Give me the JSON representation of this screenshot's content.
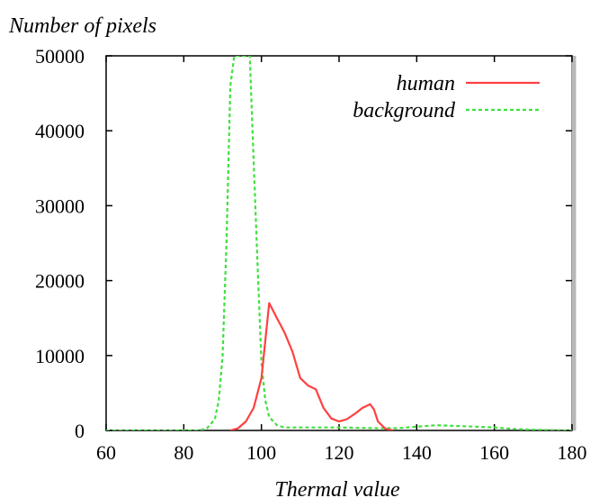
{
  "chart_data": {
    "type": "line",
    "title": "",
    "xlabel": "Thermal value",
    "ylabel": "Number of pixels",
    "xlim": [
      60,
      180
    ],
    "ylim": [
      0,
      50000
    ],
    "xticks": [
      60,
      80,
      100,
      120,
      140,
      160,
      180
    ],
    "yticks": [
      0,
      10000,
      20000,
      30000,
      40000,
      50000
    ],
    "xtick_labels": [
      "60",
      "80",
      "100",
      "120",
      "140",
      "160",
      "180"
    ],
    "ytick_labels": [
      "0",
      "10000",
      "20000",
      "30000",
      "40000",
      "50000"
    ],
    "legend_position": "top-right",
    "grid": false,
    "series": [
      {
        "name": "human",
        "color": "#ff4040",
        "style": "solid",
        "x": [
          92,
          94,
          96,
          98,
          100,
          101,
          102,
          103,
          104,
          105,
          106,
          108,
          110,
          112,
          114,
          116,
          118,
          120,
          122,
          124,
          126,
          128,
          129,
          130,
          132,
          134
        ],
        "y": [
          0,
          300,
          1200,
          3000,
          7000,
          12000,
          17000,
          16000,
          15000,
          14000,
          13000,
          10500,
          7000,
          6000,
          5500,
          3000,
          1600,
          1200,
          1500,
          2200,
          3000,
          3500,
          2800,
          1200,
          200,
          0
        ]
      },
      {
        "name": "background",
        "color": "#40e040",
        "style": "dashed",
        "x": [
          60,
          84,
          86,
          88,
          89,
          90,
          91,
          92,
          93,
          94,
          95,
          96,
          97,
          98,
          99,
          100,
          101,
          102,
          104,
          106,
          110,
          120,
          130,
          135,
          140,
          145,
          150,
          155,
          160,
          165,
          170,
          175,
          180
        ],
        "y": [
          0,
          0,
          300,
          1500,
          4000,
          10000,
          25000,
          46000,
          50000,
          50000,
          50000,
          50000,
          50000,
          36000,
          22000,
          9000,
          4000,
          1800,
          700,
          400,
          400,
          400,
          300,
          300,
          500,
          700,
          600,
          500,
          400,
          200,
          100,
          50,
          0
        ]
      }
    ]
  }
}
